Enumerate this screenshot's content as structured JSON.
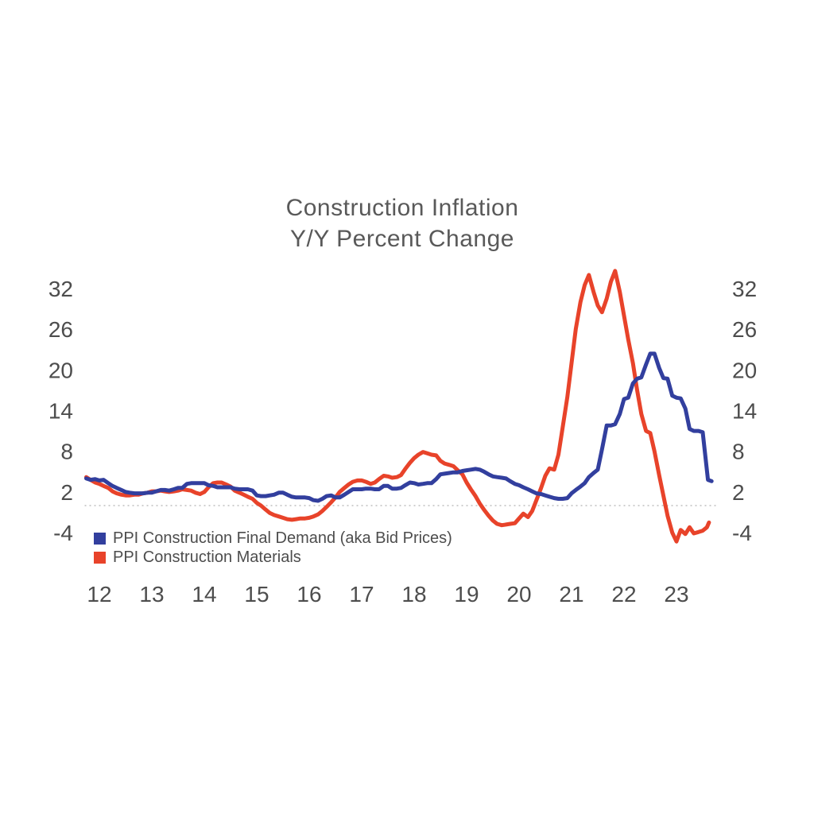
{
  "title": {
    "line1": "Construction Inflation",
    "line2": "Y/Y Percent Change",
    "color": "#595959"
  },
  "legend": {
    "items": [
      {
        "label": "PPI Construction Final Demand (aka Bid Prices)",
        "color": "#323f9e"
      },
      {
        "label": "PPI Construction Materials",
        "color": "#e8432a"
      }
    ],
    "position": "inside-bottom-left"
  },
  "chart_data": {
    "type": "line",
    "title": "Construction Inflation",
    "subtitle": "Y/Y Percent Change",
    "xlabel": "",
    "ylabel": "",
    "unit": "percent",
    "x_axis": {
      "tick_labels": [
        "12",
        "13",
        "14",
        "15",
        "16",
        "17",
        "18",
        "19",
        "20",
        "21",
        "22",
        "23"
      ],
      "range_years": [
        2011.72,
        2023.75
      ]
    },
    "y_axis": {
      "ticks": [
        32,
        26,
        20,
        14,
        8,
        2,
        -4
      ],
      "range": [
        -7,
        36
      ],
      "sides": "both",
      "tick_color": "#4d4d4d"
    },
    "grid": {
      "zero_line_only": true,
      "style": "dotted",
      "color": "#bfbfbf"
    },
    "legend_position": "inside-bottom-left",
    "series": [
      {
        "name": "PPI Construction Final Demand (aka Bid Prices)",
        "color": "#323f9e",
        "points": [
          [
            2011.75,
            4.0
          ],
          [
            2011.83,
            3.8
          ],
          [
            2011.92,
            3.9
          ],
          [
            2012.0,
            3.7
          ],
          [
            2012.08,
            3.8
          ],
          [
            2012.17,
            3.3
          ],
          [
            2012.25,
            2.9
          ],
          [
            2012.33,
            2.6
          ],
          [
            2012.42,
            2.3
          ],
          [
            2012.5,
            2.0
          ],
          [
            2012.58,
            1.9
          ],
          [
            2012.67,
            1.8
          ],
          [
            2012.75,
            1.8
          ],
          [
            2012.83,
            1.8
          ],
          [
            2012.92,
            1.9
          ],
          [
            2013.0,
            1.9
          ],
          [
            2013.08,
            2.1
          ],
          [
            2013.17,
            2.3
          ],
          [
            2013.25,
            2.3
          ],
          [
            2013.33,
            2.2
          ],
          [
            2013.42,
            2.4
          ],
          [
            2013.5,
            2.6
          ],
          [
            2013.58,
            2.6
          ],
          [
            2013.67,
            3.2
          ],
          [
            2013.75,
            3.3
          ],
          [
            2013.83,
            3.3
          ],
          [
            2013.92,
            3.3
          ],
          [
            2014.0,
            3.3
          ],
          [
            2014.08,
            3.0
          ],
          [
            2014.17,
            2.9
          ],
          [
            2014.25,
            2.7
          ],
          [
            2014.33,
            2.7
          ],
          [
            2014.42,
            2.7
          ],
          [
            2014.5,
            2.7
          ],
          [
            2014.58,
            2.5
          ],
          [
            2014.67,
            2.4
          ],
          [
            2014.75,
            2.4
          ],
          [
            2014.83,
            2.4
          ],
          [
            2014.92,
            2.2
          ],
          [
            2015.0,
            1.5
          ],
          [
            2015.08,
            1.4
          ],
          [
            2015.17,
            1.4
          ],
          [
            2015.25,
            1.5
          ],
          [
            2015.33,
            1.6
          ],
          [
            2015.42,
            1.9
          ],
          [
            2015.5,
            1.9
          ],
          [
            2015.58,
            1.6
          ],
          [
            2015.67,
            1.3
          ],
          [
            2015.75,
            1.2
          ],
          [
            2015.83,
            1.2
          ],
          [
            2015.92,
            1.2
          ],
          [
            2016.0,
            1.1
          ],
          [
            2016.08,
            0.8
          ],
          [
            2016.17,
            0.7
          ],
          [
            2016.25,
            1.0
          ],
          [
            2016.33,
            1.4
          ],
          [
            2016.42,
            1.5
          ],
          [
            2016.5,
            1.2
          ],
          [
            2016.58,
            1.2
          ],
          [
            2016.67,
            1.6
          ],
          [
            2016.75,
            2.0
          ],
          [
            2016.83,
            2.4
          ],
          [
            2016.92,
            2.4
          ],
          [
            2017.0,
            2.4
          ],
          [
            2017.08,
            2.5
          ],
          [
            2017.17,
            2.5
          ],
          [
            2017.25,
            2.4
          ],
          [
            2017.33,
            2.4
          ],
          [
            2017.42,
            2.9
          ],
          [
            2017.5,
            2.9
          ],
          [
            2017.58,
            2.5
          ],
          [
            2017.67,
            2.5
          ],
          [
            2017.75,
            2.6
          ],
          [
            2017.83,
            3.0
          ],
          [
            2017.92,
            3.4
          ],
          [
            2018.0,
            3.3
          ],
          [
            2018.08,
            3.1
          ],
          [
            2018.17,
            3.2
          ],
          [
            2018.25,
            3.3
          ],
          [
            2018.33,
            3.3
          ],
          [
            2018.42,
            3.9
          ],
          [
            2018.5,
            4.6
          ],
          [
            2018.58,
            4.7
          ],
          [
            2018.67,
            4.8
          ],
          [
            2018.75,
            4.9
          ],
          [
            2018.83,
            4.9
          ],
          [
            2018.92,
            5.1
          ],
          [
            2019.0,
            5.2
          ],
          [
            2019.08,
            5.3
          ],
          [
            2019.17,
            5.4
          ],
          [
            2019.25,
            5.3
          ],
          [
            2019.33,
            5.0
          ],
          [
            2019.42,
            4.6
          ],
          [
            2019.5,
            4.3
          ],
          [
            2019.58,
            4.2
          ],
          [
            2019.67,
            4.1
          ],
          [
            2019.75,
            4.0
          ],
          [
            2019.83,
            3.6
          ],
          [
            2019.92,
            3.2
          ],
          [
            2020.0,
            3.0
          ],
          [
            2020.08,
            2.7
          ],
          [
            2020.17,
            2.4
          ],
          [
            2020.25,
            2.1
          ],
          [
            2020.33,
            1.8
          ],
          [
            2020.42,
            1.7
          ],
          [
            2020.5,
            1.5
          ],
          [
            2020.58,
            1.3
          ],
          [
            2020.67,
            1.1
          ],
          [
            2020.75,
            1.0
          ],
          [
            2020.83,
            1.0
          ],
          [
            2020.92,
            1.1
          ],
          [
            2021.0,
            1.8
          ],
          [
            2021.08,
            2.3
          ],
          [
            2021.17,
            2.8
          ],
          [
            2021.25,
            3.3
          ],
          [
            2021.33,
            4.2
          ],
          [
            2021.42,
            4.8
          ],
          [
            2021.5,
            5.3
          ],
          [
            2021.58,
            8.3
          ],
          [
            2021.67,
            11.8
          ],
          [
            2021.75,
            11.8
          ],
          [
            2021.83,
            12.0
          ],
          [
            2021.92,
            13.5
          ],
          [
            2022.0,
            15.7
          ],
          [
            2022.08,
            15.9
          ],
          [
            2022.17,
            18.0
          ],
          [
            2022.25,
            18.7
          ],
          [
            2022.33,
            18.9
          ],
          [
            2022.42,
            20.8
          ],
          [
            2022.5,
            22.4
          ],
          [
            2022.58,
            22.4
          ],
          [
            2022.67,
            20.3
          ],
          [
            2022.75,
            18.8
          ],
          [
            2022.83,
            18.7
          ],
          [
            2022.92,
            16.2
          ],
          [
            2023.0,
            15.9
          ],
          [
            2023.08,
            15.8
          ],
          [
            2023.17,
            14.3
          ],
          [
            2023.25,
            11.3
          ],
          [
            2023.33,
            11.0
          ],
          [
            2023.42,
            11.0
          ],
          [
            2023.5,
            10.8
          ],
          [
            2023.55,
            7.3
          ],
          [
            2023.6,
            3.8
          ],
          [
            2023.67,
            3.6
          ]
        ]
      },
      {
        "name": "PPI Construction Materials",
        "color": "#e8432a",
        "points": [
          [
            2011.75,
            4.2
          ],
          [
            2011.83,
            3.8
          ],
          [
            2011.92,
            3.4
          ],
          [
            2012.0,
            3.2
          ],
          [
            2012.08,
            2.9
          ],
          [
            2012.17,
            2.6
          ],
          [
            2012.25,
            2.1
          ],
          [
            2012.33,
            1.8
          ],
          [
            2012.42,
            1.6
          ],
          [
            2012.5,
            1.5
          ],
          [
            2012.58,
            1.5
          ],
          [
            2012.67,
            1.6
          ],
          [
            2012.75,
            1.6
          ],
          [
            2012.83,
            1.8
          ],
          [
            2012.92,
            1.9
          ],
          [
            2013.0,
            2.1
          ],
          [
            2013.08,
            2.1
          ],
          [
            2013.17,
            2.2
          ],
          [
            2013.25,
            2.1
          ],
          [
            2013.33,
            2.0
          ],
          [
            2013.42,
            2.1
          ],
          [
            2013.5,
            2.2
          ],
          [
            2013.58,
            2.4
          ],
          [
            2013.67,
            2.3
          ],
          [
            2013.75,
            2.2
          ],
          [
            2013.83,
            1.9
          ],
          [
            2013.92,
            1.7
          ],
          [
            2014.0,
            2.0
          ],
          [
            2014.08,
            2.7
          ],
          [
            2014.17,
            3.3
          ],
          [
            2014.25,
            3.4
          ],
          [
            2014.33,
            3.4
          ],
          [
            2014.42,
            3.1
          ],
          [
            2014.5,
            2.8
          ],
          [
            2014.58,
            2.2
          ],
          [
            2014.67,
            1.9
          ],
          [
            2014.75,
            1.6
          ],
          [
            2014.83,
            1.3
          ],
          [
            2014.92,
            1.0
          ],
          [
            2015.0,
            0.4
          ],
          [
            2015.08,
            0.0
          ],
          [
            2015.17,
            -0.6
          ],
          [
            2015.25,
            -1.1
          ],
          [
            2015.33,
            -1.4
          ],
          [
            2015.42,
            -1.6
          ],
          [
            2015.5,
            -1.8
          ],
          [
            2015.58,
            -2.0
          ],
          [
            2015.67,
            -2.1
          ],
          [
            2015.75,
            -2.0
          ],
          [
            2015.83,
            -1.9
          ],
          [
            2015.92,
            -1.9
          ],
          [
            2016.0,
            -1.8
          ],
          [
            2016.08,
            -1.6
          ],
          [
            2016.17,
            -1.3
          ],
          [
            2016.25,
            -0.8
          ],
          [
            2016.33,
            -0.2
          ],
          [
            2016.42,
            0.5
          ],
          [
            2016.5,
            1.2
          ],
          [
            2016.58,
            2.0
          ],
          [
            2016.67,
            2.6
          ],
          [
            2016.75,
            3.1
          ],
          [
            2016.83,
            3.5
          ],
          [
            2016.92,
            3.7
          ],
          [
            2017.0,
            3.7
          ],
          [
            2017.08,
            3.5
          ],
          [
            2017.17,
            3.2
          ],
          [
            2017.25,
            3.4
          ],
          [
            2017.33,
            3.9
          ],
          [
            2017.42,
            4.4
          ],
          [
            2017.5,
            4.3
          ],
          [
            2017.58,
            4.1
          ],
          [
            2017.67,
            4.2
          ],
          [
            2017.75,
            4.5
          ],
          [
            2017.83,
            5.4
          ],
          [
            2017.92,
            6.3
          ],
          [
            2018.0,
            7.0
          ],
          [
            2018.08,
            7.5
          ],
          [
            2018.17,
            7.9
          ],
          [
            2018.25,
            7.7
          ],
          [
            2018.33,
            7.5
          ],
          [
            2018.42,
            7.4
          ],
          [
            2018.5,
            6.6
          ],
          [
            2018.58,
            6.2
          ],
          [
            2018.67,
            6.0
          ],
          [
            2018.75,
            5.8
          ],
          [
            2018.83,
            5.2
          ],
          [
            2018.92,
            4.6
          ],
          [
            2019.0,
            3.4
          ],
          [
            2019.08,
            2.4
          ],
          [
            2019.17,
            1.4
          ],
          [
            2019.25,
            0.3
          ],
          [
            2019.33,
            -0.6
          ],
          [
            2019.42,
            -1.5
          ],
          [
            2019.5,
            -2.2
          ],
          [
            2019.58,
            -2.7
          ],
          [
            2019.67,
            -2.9
          ],
          [
            2019.75,
            -2.8
          ],
          [
            2019.83,
            -2.7
          ],
          [
            2019.92,
            -2.6
          ],
          [
            2020.0,
            -1.9
          ],
          [
            2020.08,
            -1.2
          ],
          [
            2020.17,
            -1.7
          ],
          [
            2020.25,
            -0.8
          ],
          [
            2020.33,
            0.8
          ],
          [
            2020.42,
            2.6
          ],
          [
            2020.5,
            4.4
          ],
          [
            2020.58,
            5.5
          ],
          [
            2020.67,
            5.3
          ],
          [
            2020.75,
            7.5
          ],
          [
            2020.83,
            11.5
          ],
          [
            2020.92,
            16.0
          ],
          [
            2021.0,
            21.0
          ],
          [
            2021.08,
            26.0
          ],
          [
            2021.17,
            30.0
          ],
          [
            2021.25,
            32.5
          ],
          [
            2021.33,
            34.0
          ],
          [
            2021.42,
            31.5
          ],
          [
            2021.5,
            29.5
          ],
          [
            2021.58,
            28.5
          ],
          [
            2021.67,
            30.5
          ],
          [
            2021.75,
            33.0
          ],
          [
            2021.83,
            34.6
          ],
          [
            2021.92,
            31.5
          ],
          [
            2022.0,
            28.0
          ],
          [
            2022.08,
            24.5
          ],
          [
            2022.17,
            21.0
          ],
          [
            2022.25,
            17.0
          ],
          [
            2022.33,
            13.5
          ],
          [
            2022.42,
            11.0
          ],
          [
            2022.5,
            10.7
          ],
          [
            2022.58,
            8.0
          ],
          [
            2022.67,
            4.5
          ],
          [
            2022.75,
            1.5
          ],
          [
            2022.83,
            -1.5
          ],
          [
            2022.92,
            -4.0
          ],
          [
            2023.0,
            -5.3
          ],
          [
            2023.08,
            -3.6
          ],
          [
            2023.17,
            -4.2
          ],
          [
            2023.25,
            -3.2
          ],
          [
            2023.33,
            -4.1
          ],
          [
            2023.42,
            -3.9
          ],
          [
            2023.5,
            -3.7
          ],
          [
            2023.58,
            -3.2
          ],
          [
            2023.62,
            -2.5
          ]
        ]
      }
    ]
  }
}
